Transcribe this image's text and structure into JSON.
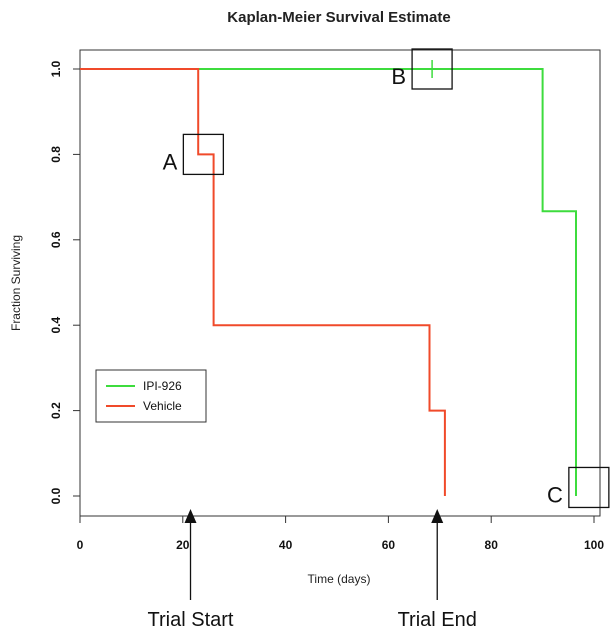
{
  "chart_data": {
    "type": "line",
    "title": "Kaplan-Meier Survival Estimate",
    "xlabel": "Time (days)",
    "ylabel": "Fraction Surviving",
    "xlim": [
      0,
      100
    ],
    "ylim": [
      0,
      1.0
    ],
    "x_ticks": [
      "0",
      "20",
      "40",
      "60",
      "80",
      "100"
    ],
    "y_ticks": [
      "0.0",
      "0.2",
      "0.4",
      "0.6",
      "0.8",
      "1.0"
    ],
    "grid": false,
    "legend_position": "bottom-left",
    "series": [
      {
        "name": "IPI-926",
        "color": "#3ddc3d",
        "step_points": [
          [
            0,
            1.0
          ],
          [
            90,
            1.0
          ],
          [
            90,
            0.667
          ],
          [
            96.5,
            0.667
          ],
          [
            96.5,
            0.0
          ]
        ],
        "censor_marks": [
          [
            68.5,
            1.0
          ]
        ]
      },
      {
        "name": "Vehicle",
        "color": "#f04a2a",
        "step_points": [
          [
            0,
            1.0
          ],
          [
            23,
            1.0
          ],
          [
            23,
            0.8
          ],
          [
            26,
            0.8
          ],
          [
            26,
            0.4
          ],
          [
            68,
            0.4
          ],
          [
            68,
            0.2
          ],
          [
            71,
            0.2
          ],
          [
            71,
            0.0
          ]
        ],
        "censor_marks": []
      }
    ],
    "annotations": [
      {
        "label": "A",
        "x": 24,
        "y": 0.8
      },
      {
        "label": "B",
        "x": 68.5,
        "y": 1.0
      },
      {
        "label": "C",
        "x": 99,
        "y": 0.02
      }
    ],
    "markers": [
      {
        "label": "Trial Start",
        "x": 21.5
      },
      {
        "label": "Trial End",
        "x": 69.5
      }
    ]
  }
}
